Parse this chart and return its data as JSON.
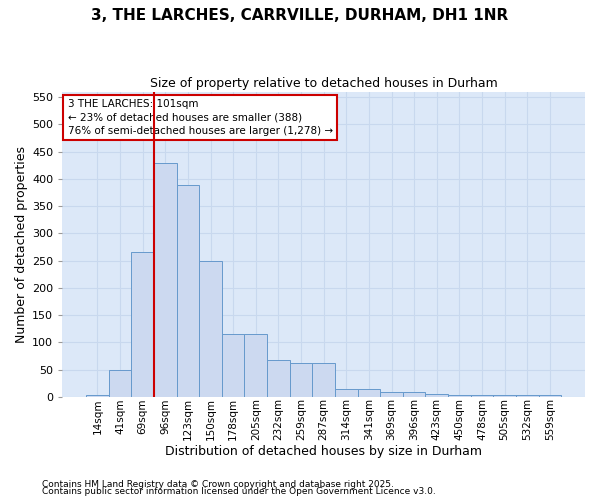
{
  "title": "3, THE LARCHES, CARRVILLE, DURHAM, DH1 1NR",
  "subtitle": "Size of property relative to detached houses in Durham",
  "xlabel": "Distribution of detached houses by size in Durham",
  "ylabel": "Number of detached properties",
  "footnote1": "Contains HM Land Registry data © Crown copyright and database right 2025.",
  "footnote2": "Contains public sector information licensed under the Open Government Licence v3.0.",
  "bar_labels": [
    "14sqm",
    "41sqm",
    "69sqm",
    "96sqm",
    "123sqm",
    "150sqm",
    "178sqm",
    "205sqm",
    "232sqm",
    "259sqm",
    "287sqm",
    "314sqm",
    "341sqm",
    "369sqm",
    "396sqm",
    "423sqm",
    "450sqm",
    "478sqm",
    "505sqm",
    "532sqm",
    "559sqm"
  ],
  "bar_values": [
    3,
    50,
    265,
    430,
    388,
    250,
    115,
    115,
    68,
    62,
    62,
    15,
    15,
    8,
    8,
    5,
    3,
    3,
    3,
    3,
    3
  ],
  "bar_color": "#ccd9f0",
  "bar_edge_color": "#6699cc",
  "plot_bg_color": "#dce8f8",
  "fig_bg_color": "#ffffff",
  "grid_color": "#c8d8ee",
  "vline_color": "#cc0000",
  "vline_xindex": 3,
  "annotation_line1": "3 THE LARCHES: 101sqm",
  "annotation_line2": "← 23% of detached houses are smaller (388)",
  "annotation_line3": "76% of semi-detached houses are larger (1,278) →",
  "annotation_box_edgecolor": "#cc0000",
  "annotation_bg": "#ffffff",
  "ylim_max": 560,
  "yticks": [
    0,
    50,
    100,
    150,
    200,
    250,
    300,
    350,
    400,
    450,
    500,
    550
  ]
}
